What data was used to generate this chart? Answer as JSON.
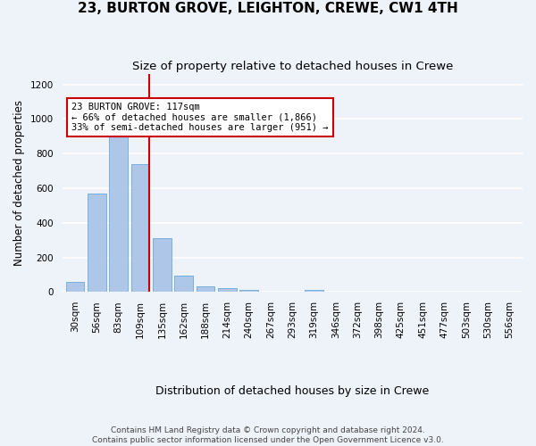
{
  "title": "23, BURTON GROVE, LEIGHTON, CREWE, CW1 4TH",
  "subtitle": "Size of property relative to detached houses in Crewe",
  "xlabel": "Distribution of detached houses by size in Crewe",
  "ylabel": "Number of detached properties",
  "bar_categories": [
    "30sqm",
    "56sqm",
    "83sqm",
    "109sqm",
    "135sqm",
    "162sqm",
    "188sqm",
    "214sqm",
    "240sqm",
    "267sqm",
    "293sqm",
    "319sqm",
    "346sqm",
    "372sqm",
    "398sqm",
    "425sqm",
    "451sqm",
    "477sqm",
    "503sqm",
    "530sqm",
    "556sqm"
  ],
  "bar_values": [
    60,
    570,
    1000,
    740,
    310,
    95,
    35,
    22,
    12,
    0,
    0,
    12,
    0,
    0,
    0,
    0,
    0,
    0,
    0,
    0,
    0
  ],
  "bar_color": "#aec6e8",
  "bar_edge_color": "#5a9fd4",
  "red_line_bar_index": 3,
  "red_line_color": "#cc0000",
  "annotation_text": "23 BURTON GROVE: 117sqm\n← 66% of detached houses are smaller (1,866)\n33% of semi-detached houses are larger (951) →",
  "annotation_box_color": "#ffffff",
  "annotation_box_edge_color": "#cc0000",
  "ylim": [
    0,
    1260
  ],
  "yticks": [
    0,
    200,
    400,
    600,
    800,
    1000,
    1200
  ],
  "footer_text": "Contains HM Land Registry data © Crown copyright and database right 2024.\nContains public sector information licensed under the Open Government Licence v3.0.",
  "background_color": "#eef2f9",
  "grid_color": "#ffffff",
  "title_fontsize": 11,
  "subtitle_fontsize": 9.5,
  "ylabel_fontsize": 8.5,
  "xlabel_fontsize": 9,
  "tick_fontsize": 7.5,
  "annotation_fontsize": 7.5,
  "footer_fontsize": 6.5
}
